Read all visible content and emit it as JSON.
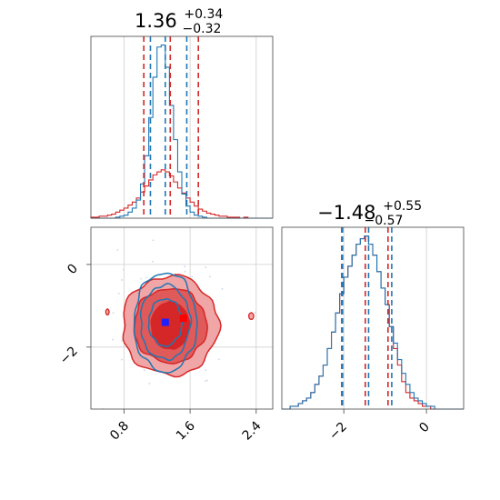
{
  "colors": {
    "red": "#d62728",
    "red_fill_outer": "#f0a6a6",
    "red_fill_inner": "#e05a5a",
    "red_core": "#d62728",
    "blue": "#1f77b4",
    "blue_marker": "#1f1fff",
    "red_marker": "#ff0000",
    "grid": "#cfcfcf"
  },
  "chart_data": [
    {
      "type": "histogram",
      "panel": "top-left",
      "title_value": "1.36",
      "title_plus": "+0.34",
      "title_minus": "−0.32",
      "xlim": [
        0.4,
        2.6
      ],
      "grid": true,
      "series": [
        {
          "color": "red",
          "quantiles": [
            1.04,
            1.36,
            1.7
          ],
          "bins_start": 0.4,
          "bin_width": 0.05,
          "values": [
            1,
            1,
            2,
            2,
            3,
            4,
            6,
            8,
            10,
            13,
            16,
            20,
            26,
            32,
            38,
            43,
            46,
            48,
            46,
            42,
            36,
            30,
            25,
            20,
            16,
            12,
            9,
            7,
            5,
            4,
            3,
            2,
            2,
            1,
            1,
            1,
            0,
            1,
            0,
            0,
            0,
            0,
            0,
            0
          ]
        },
        {
          "color": "blue",
          "quantiles": [
            1.12,
            1.3,
            1.56
          ],
          "bins_start": 0.4,
          "bin_width": 0.05,
          "values": [
            0,
            0,
            0,
            0,
            0,
            0,
            1,
            2,
            3,
            6,
            10,
            18,
            34,
            62,
            100,
            140,
            170,
            172,
            150,
            112,
            78,
            46,
            24,
            12,
            6,
            3,
            2,
            1,
            0,
            0,
            0,
            0,
            0,
            0,
            0,
            0,
            0,
            0,
            0,
            0,
            0,
            0,
            0,
            0
          ]
        }
      ]
    },
    {
      "type": "histogram",
      "panel": "bottom-right",
      "title_value": "−1.48",
      "title_plus": "+0.55",
      "title_minus": "−0.57",
      "xlim": [
        -3.5,
        0.9
      ],
      "xticks": [
        -2,
        0
      ],
      "xticklabels": [
        "−2",
        "0"
      ],
      "grid": true,
      "series": [
        {
          "color": "red",
          "quantiles": [
            -2.05,
            -1.48,
            -0.93
          ],
          "bins_start": -3.5,
          "bin_width": 0.1,
          "values": [
            0,
            0,
            1,
            1,
            2,
            3,
            4,
            6,
            9,
            12,
            16,
            22,
            28,
            35,
            42,
            48,
            52,
            56,
            60,
            62,
            63,
            60,
            56,
            50,
            44,
            38,
            30,
            22,
            16,
            10,
            6,
            4,
            3,
            2,
            1,
            1,
            0,
            0,
            0,
            0,
            0,
            0,
            0,
            0
          ]
        },
        {
          "color": "blue",
          "quantiles": [
            -2.03,
            -1.4,
            -0.84
          ],
          "bins_start": -3.5,
          "bin_width": 0.1,
          "values": [
            0,
            0,
            1,
            1,
            2,
            3,
            4,
            6,
            9,
            12,
            16,
            22,
            28,
            35,
            42,
            48,
            52,
            56,
            60,
            62,
            63,
            60,
            56,
            50,
            44,
            38,
            30,
            24,
            18,
            13,
            9,
            6,
            4,
            3,
            2,
            1,
            1,
            0,
            0,
            0,
            0,
            0,
            0,
            0
          ]
        }
      ]
    },
    {
      "type": "contour",
      "panel": "bottom-left",
      "xlim": [
        0.4,
        2.6
      ],
      "ylim": [
        -3.5,
        0.9
      ],
      "xticks": [
        0.8,
        1.6,
        2.4
      ],
      "xticklabels": [
        "0.8",
        "1.6",
        "2.4"
      ],
      "yticks": [
        0,
        -2
      ],
      "yticklabels": [
        "0",
        "−2"
      ],
      "grid": true,
      "red_center": [
        1.36,
        -1.48
      ],
      "red_radii": [
        [
          0.23,
          0.57
        ],
        [
          0.44,
          0.9
        ],
        [
          0.58,
          1.2
        ]
      ],
      "blue_center": [
        1.3,
        -1.4
      ],
      "blue_radii": [
        [
          0.2,
          0.57
        ],
        [
          0.3,
          0.9
        ],
        [
          0.38,
          1.2
        ]
      ],
      "markers": [
        {
          "color": "blue_marker",
          "x": 1.3,
          "y": -1.4
        },
        {
          "color": "red_marker",
          "x": 1.52,
          "y": -1.3
        }
      ]
    }
  ]
}
